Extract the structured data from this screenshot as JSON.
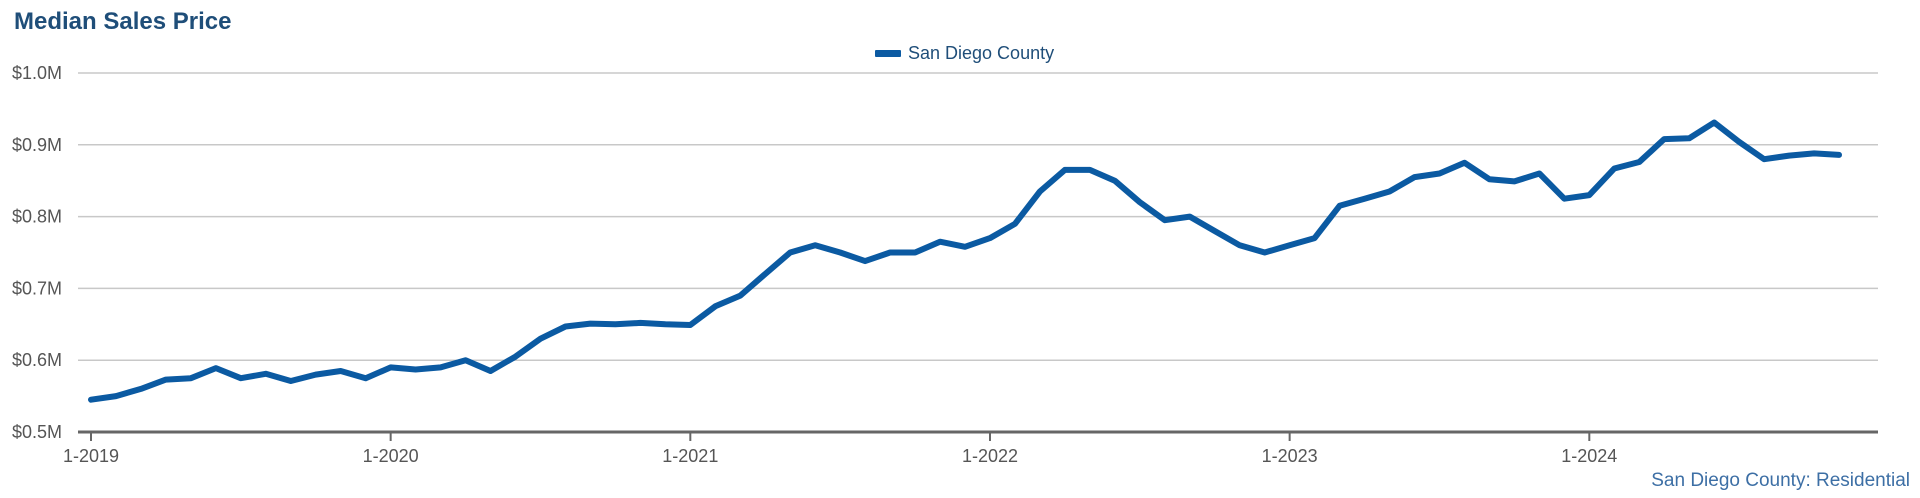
{
  "chart_data": {
    "type": "line",
    "title": "Median Sales Price",
    "xlabel": "",
    "ylabel": "",
    "ylim": [
      0.5,
      1.0
    ],
    "y_ticks": [
      {
        "value": 0.5,
        "label": "$0.5M"
      },
      {
        "value": 0.6,
        "label": "$0.6M"
      },
      {
        "value": 0.7,
        "label": "$0.7M"
      },
      {
        "value": 0.8,
        "label": "$0.8M"
      },
      {
        "value": 0.9,
        "label": "$0.9M"
      },
      {
        "value": 1.0,
        "label": "$1.0M"
      }
    ],
    "x_ticks": [
      {
        "month": "2019-01",
        "label": "1-2019"
      },
      {
        "month": "2020-01",
        "label": "1-2020"
      },
      {
        "month": "2021-01",
        "label": "1-2021"
      },
      {
        "month": "2022-01",
        "label": "1-2022"
      },
      {
        "month": "2023-01",
        "label": "1-2023"
      },
      {
        "month": "2024-01",
        "label": "1-2024"
      }
    ],
    "grid": true,
    "legend_position": "top-center",
    "series": [
      {
        "name": "San Diego County",
        "color": "#0b5aa2",
        "points": [
          {
            "x": "2019-01",
            "y": 0.545
          },
          {
            "x": "2019-02",
            "y": 0.55
          },
          {
            "x": "2019-03",
            "y": 0.56
          },
          {
            "x": "2019-04",
            "y": 0.573
          },
          {
            "x": "2019-05",
            "y": 0.575
          },
          {
            "x": "2019-06",
            "y": 0.589
          },
          {
            "x": "2019-07",
            "y": 0.575
          },
          {
            "x": "2019-08",
            "y": 0.581
          },
          {
            "x": "2019-09",
            "y": 0.571
          },
          {
            "x": "2019-10",
            "y": 0.58
          },
          {
            "x": "2019-11",
            "y": 0.585
          },
          {
            "x": "2019-12",
            "y": 0.575
          },
          {
            "x": "2020-01",
            "y": 0.59
          },
          {
            "x": "2020-02",
            "y": 0.587
          },
          {
            "x": "2020-03",
            "y": 0.59
          },
          {
            "x": "2020-04",
            "y": 0.6
          },
          {
            "x": "2020-05",
            "y": 0.585
          },
          {
            "x": "2020-06",
            "y": 0.605
          },
          {
            "x": "2020-07",
            "y": 0.63
          },
          {
            "x": "2020-08",
            "y": 0.647
          },
          {
            "x": "2020-09",
            "y": 0.651
          },
          {
            "x": "2020-10",
            "y": 0.65
          },
          {
            "x": "2020-11",
            "y": 0.652
          },
          {
            "x": "2020-12",
            "y": 0.65
          },
          {
            "x": "2021-01",
            "y": 0.649
          },
          {
            "x": "2021-02",
            "y": 0.675
          },
          {
            "x": "2021-03",
            "y": 0.69
          },
          {
            "x": "2021-04",
            "y": 0.72
          },
          {
            "x": "2021-05",
            "y": 0.75
          },
          {
            "x": "2021-06",
            "y": 0.76
          },
          {
            "x": "2021-07",
            "y": 0.75
          },
          {
            "x": "2021-08",
            "y": 0.738
          },
          {
            "x": "2021-09",
            "y": 0.75
          },
          {
            "x": "2021-10",
            "y": 0.75
          },
          {
            "x": "2021-11",
            "y": 0.765
          },
          {
            "x": "2021-12",
            "y": 0.758
          },
          {
            "x": "2022-01",
            "y": 0.77
          },
          {
            "x": "2022-02",
            "y": 0.79
          },
          {
            "x": "2022-03",
            "y": 0.835
          },
          {
            "x": "2022-04",
            "y": 0.865
          },
          {
            "x": "2022-05",
            "y": 0.865
          },
          {
            "x": "2022-06",
            "y": 0.85
          },
          {
            "x": "2022-07",
            "y": 0.82
          },
          {
            "x": "2022-08",
            "y": 0.795
          },
          {
            "x": "2022-09",
            "y": 0.8
          },
          {
            "x": "2022-10",
            "y": 0.78
          },
          {
            "x": "2022-11",
            "y": 0.76
          },
          {
            "x": "2022-12",
            "y": 0.75
          },
          {
            "x": "2023-01",
            "y": 0.76
          },
          {
            "x": "2023-02",
            "y": 0.77
          },
          {
            "x": "2023-03",
            "y": 0.815
          },
          {
            "x": "2023-04",
            "y": 0.825
          },
          {
            "x": "2023-05",
            "y": 0.835
          },
          {
            "x": "2023-06",
            "y": 0.855
          },
          {
            "x": "2023-07",
            "y": 0.86
          },
          {
            "x": "2023-08",
            "y": 0.875
          },
          {
            "x": "2023-09",
            "y": 0.852
          },
          {
            "x": "2023-10",
            "y": 0.849
          },
          {
            "x": "2023-11",
            "y": 0.86
          },
          {
            "x": "2023-12",
            "y": 0.825
          },
          {
            "x": "2024-01",
            "y": 0.83
          },
          {
            "x": "2024-02",
            "y": 0.867
          },
          {
            "x": "2024-03",
            "y": 0.876
          },
          {
            "x": "2024-04",
            "y": 0.908
          },
          {
            "x": "2024-05",
            "y": 0.909
          },
          {
            "x": "2024-06",
            "y": 0.931
          },
          {
            "x": "2024-07",
            "y": 0.904
          },
          {
            "x": "2024-08",
            "y": 0.88
          },
          {
            "x": "2024-09",
            "y": 0.885
          },
          {
            "x": "2024-10",
            "y": 0.888
          },
          {
            "x": "2024-11",
            "y": 0.886
          }
        ]
      }
    ],
    "source_note": "San Diego County: Residential"
  }
}
